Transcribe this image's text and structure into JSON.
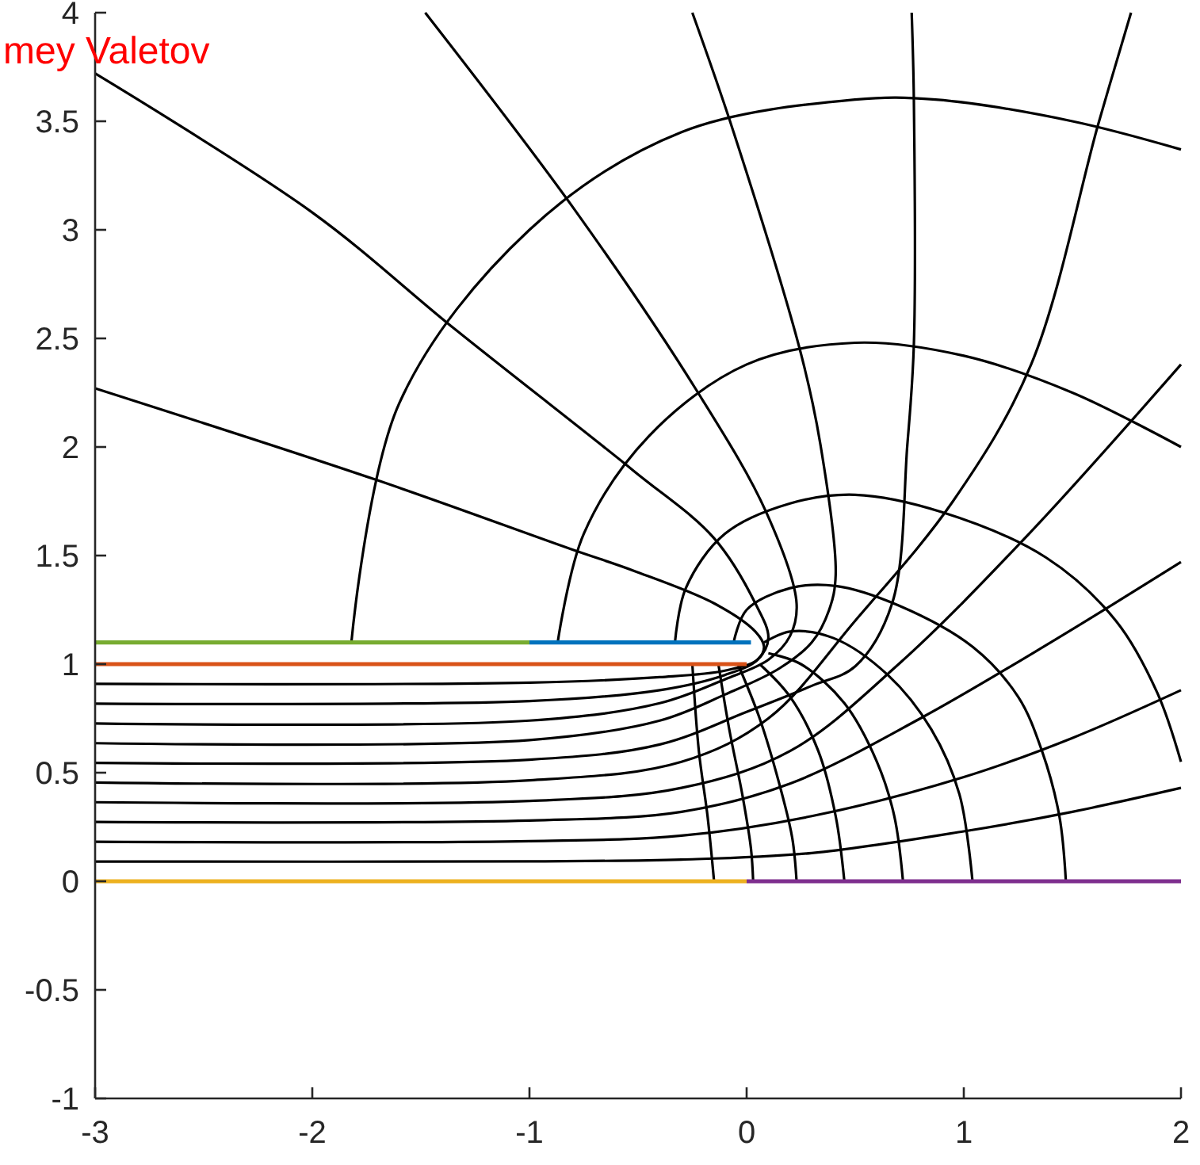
{
  "chart_data": {
    "type": "line",
    "annotations": [
      "mey Valetov"
    ],
    "xlim": [
      -3,
      2
    ],
    "ylim": [
      -1,
      4
    ],
    "xticks": [
      -3,
      -2,
      -1,
      0,
      1,
      2
    ],
    "yticks": [
      -1,
      -0.5,
      0,
      0.5,
      1,
      1.5,
      2,
      2.5,
      3,
      3.5,
      4
    ],
    "series": [
      {
        "color": "#000000",
        "x": [
          -3,
          -1,
          -0.3,
          0.3,
          1,
          1.5,
          2
        ],
        "values": [
          0.091,
          0.092,
          0.1,
          0.13,
          0.23,
          0.32,
          0.43
        ]
      },
      {
        "color": "#000000",
        "x": [
          -3,
          -1,
          -0.3,
          0.3,
          1,
          1.5,
          2
        ],
        "values": [
          0.182,
          0.185,
          0.21,
          0.3,
          0.48,
          0.66,
          0.88
        ]
      },
      {
        "color": "#000000",
        "x": [
          -3,
          -1,
          -0.3,
          0.2,
          0.8,
          1.4,
          2
        ],
        "values": [
          0.273,
          0.28,
          0.32,
          0.45,
          0.75,
          1.1,
          1.47
        ]
      },
      {
        "color": "#000000",
        "x": [
          -3,
          -1,
          -0.3,
          0.2,
          0.7,
          1.3,
          2
        ],
        "values": [
          0.364,
          0.37,
          0.43,
          0.6,
          1.0,
          1.6,
          2.38
        ]
      },
      {
        "color": "#000000",
        "x": [
          -3,
          -1,
          -0.3,
          0.1,
          0.5,
          0.95,
          1.31,
          1.62,
          1.77
        ],
        "values": [
          0.455,
          0.465,
          0.55,
          0.75,
          1.2,
          1.75,
          2.38,
          3.49,
          4
        ]
      },
      {
        "color": "#000000",
        "x": [
          -3,
          -1,
          -0.4,
          0,
          0.3,
          0.5,
          0.67,
          0.74,
          0.77,
          0.77,
          0.76
        ],
        "values": [
          0.545,
          0.56,
          0.63,
          0.78,
          0.9,
          0.99,
          1.28,
          2.01,
          2.47,
          3.6,
          4
        ]
      },
      {
        "color": "#000000",
        "x": [
          -3,
          -1,
          -0.4,
          -0.1,
          0.15,
          0.3,
          0.38,
          0.41,
          0.34,
          0.25,
          -0.06,
          -0.25
        ],
        "values": [
          0.636,
          0.65,
          0.74,
          0.86,
          0.98,
          1.1,
          1.25,
          1.41,
          2.01,
          2.43,
          3.45,
          4
        ]
      },
      {
        "color": "#000000",
        "x": [
          -3,
          -1,
          -0.4,
          -0.1,
          0.1,
          0.2,
          0.23,
          0.09,
          -0.23,
          -0.79,
          -1.48
        ],
        "values": [
          0.727,
          0.74,
          0.82,
          0.93,
          1.02,
          1.13,
          1.28,
          1.7,
          2.26,
          3.09,
          4
        ]
      },
      {
        "color": "#000000",
        "x": [
          -3,
          -1,
          -0.4,
          -0.1,
          0.05,
          0.1,
          0.04,
          -0.15,
          -0.52,
          -1.34,
          -2,
          -3
        ],
        "values": [
          0.818,
          0.83,
          0.88,
          0.95,
          1.02,
          1.12,
          1.28,
          1.58,
          1.89,
          2.54,
          3.08,
          3.72
        ]
      },
      {
        "color": "#000000",
        "x": [
          -3,
          -1,
          -0.4,
          -0.1,
          0.05,
          0.08,
          0.04,
          -0.15,
          -0.52,
          -0.81,
          -1.71,
          -3
        ],
        "values": [
          0.909,
          0.915,
          0.94,
          0.97,
          1.02,
          1.08,
          1.15,
          1.28,
          1.43,
          1.53,
          1.85,
          2.27
        ]
      },
      {
        "color": "#000000",
        "x": [
          -1.82,
          -1.6,
          -1.0,
          -0.3,
          0.5,
          0.87,
          1.5,
          2
        ],
        "values": [
          1.1,
          2.2,
          3.0,
          3.45,
          3.6,
          3.6,
          3.5,
          3.37
        ]
      },
      {
        "color": "#000000",
        "x": [
          -0.87,
          -0.75,
          -0.45,
          0,
          0.5,
          1.0,
          1.5,
          2
        ],
        "values": [
          1.1,
          1.6,
          2.05,
          2.38,
          2.48,
          2.42,
          2.25,
          2.0
        ]
      },
      {
        "color": "#000000",
        "x": [
          -0.33,
          -0.28,
          -0.1,
          0.2,
          0.5,
          0.9,
          1.38,
          1.7,
          1.89,
          2
        ],
        "values": [
          1.1,
          1.35,
          1.6,
          1.74,
          1.78,
          1.7,
          1.49,
          1.2,
          0.87,
          0.55
        ]
      },
      {
        "color": "#000000",
        "x": [
          -0.06,
          0,
          0.2,
          0.41,
          0.7,
          1.04,
          1.25,
          1.36,
          1.44,
          1.47
        ],
        "values": [
          1.1,
          1.25,
          1.35,
          1.36,
          1.27,
          1.08,
          0.85,
          0.6,
          0.3,
          0
        ]
      },
      {
        "color": "#000000",
        "x": [
          0.08,
          0.2,
          0.4,
          0.65,
          0.85,
          0.98,
          1.04
        ],
        "values": [
          1.1,
          1.15,
          1.12,
          0.95,
          0.7,
          0.4,
          0
        ]
      },
      {
        "color": "#000000",
        "x": [
          0.1,
          0.25,
          0.45,
          0.6,
          0.68,
          0.72
        ],
        "values": [
          1.05,
          1.0,
          0.82,
          0.55,
          0.3,
          0
        ]
      },
      {
        "color": "#000000",
        "x": [
          0.06,
          0.2,
          0.33,
          0.41,
          0.45
        ],
        "values": [
          1.0,
          0.85,
          0.6,
          0.3,
          0
        ]
      },
      {
        "color": "#000000",
        "x": [
          -0.04,
          0.06,
          0.15,
          0.21,
          0.23
        ],
        "values": [
          1.0,
          0.75,
          0.45,
          0.2,
          0
        ]
      },
      {
        "color": "#000000",
        "x": [
          -0.13,
          -0.08,
          -0.02,
          0.02,
          0.03
        ],
        "values": [
          1.0,
          0.7,
          0.4,
          0.15,
          0
        ]
      },
      {
        "color": "#000000",
        "x": [
          -0.25,
          -0.22,
          -0.18,
          -0.15
        ],
        "values": [
          1.0,
          0.6,
          0.3,
          0
        ]
      },
      {
        "color": "#77ac30",
        "x": [
          -3,
          -1
        ],
        "values": [
          1.1,
          1.1
        ]
      },
      {
        "color": "#0072bd",
        "x": [
          -1,
          0.02
        ],
        "values": [
          1.1,
          1.1
        ]
      },
      {
        "color": "#d95319",
        "x": [
          -3,
          0
        ],
        "values": [
          1,
          1
        ]
      },
      {
        "color": "#edb120",
        "x": [
          -3,
          0
        ],
        "values": [
          0,
          0
        ]
      },
      {
        "color": "#7e2f8e",
        "x": [
          0,
          2
        ],
        "values": [
          0,
          0
        ]
      }
    ]
  }
}
